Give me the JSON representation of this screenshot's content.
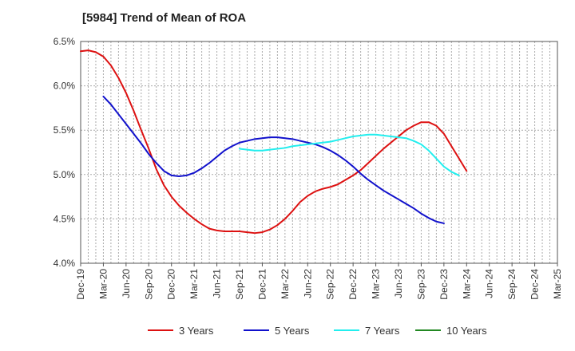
{
  "chart_data": {
    "type": "line",
    "title": "[5984]  Trend of Mean of ROA",
    "xlabel": "",
    "ylabel": "",
    "ylim": [
      4.0,
      6.5
    ],
    "grid": true,
    "legend_position": "bottom",
    "y_ticks": [
      "4.0%",
      "4.5%",
      "5.0%",
      "5.5%",
      "6.0%",
      "6.5%"
    ],
    "x_ticks": [
      "Dec-19",
      "Mar-20",
      "Jun-20",
      "Sep-20",
      "Dec-20",
      "Mar-21",
      "Jun-21",
      "Sep-21",
      "Dec-21",
      "Mar-22",
      "Jun-22",
      "Sep-22",
      "Dec-22",
      "Mar-23",
      "Jun-23",
      "Sep-23",
      "Dec-23",
      "Mar-24",
      "Jun-24",
      "Sep-24",
      "Dec-24",
      "Mar-25"
    ],
    "series": [
      {
        "name": "3 Years",
        "color": "#dd1111",
        "values": [
          6.39,
          6.4,
          6.38,
          6.33,
          6.23,
          6.09,
          5.92,
          5.72,
          5.5,
          5.29,
          5.06,
          4.88,
          4.75,
          4.65,
          4.57,
          4.5,
          4.44,
          4.39,
          4.37,
          4.36,
          4.36,
          4.36,
          4.35,
          4.34,
          4.35,
          4.38,
          4.43,
          4.5,
          4.59,
          4.69,
          4.76,
          4.81,
          4.84,
          4.86,
          4.89,
          4.94,
          4.99,
          5.05,
          5.13,
          5.21,
          5.29,
          5.36,
          5.43,
          5.5,
          5.55,
          5.59,
          5.59,
          5.55,
          5.46,
          5.32,
          5.18,
          5.04
        ]
      },
      {
        "name": "5 Years",
        "color": "#1111cc",
        "values": [
          null,
          null,
          null,
          5.88,
          5.79,
          5.68,
          5.57,
          5.46,
          5.35,
          5.23,
          5.13,
          5.04,
          4.99,
          4.98,
          4.99,
          5.02,
          5.07,
          5.13,
          5.2,
          5.27,
          5.32,
          5.36,
          5.38,
          5.4,
          5.41,
          5.42,
          5.42,
          5.41,
          5.4,
          5.38,
          5.36,
          5.34,
          5.31,
          5.27,
          5.22,
          5.16,
          5.09,
          5.01,
          4.94,
          4.88,
          4.82,
          4.77,
          4.72,
          4.67,
          4.62,
          4.56,
          4.51,
          4.47,
          4.45
        ]
      },
      {
        "name": "7 Years",
        "color": "#22eeee",
        "values": [
          null,
          null,
          null,
          null,
          null,
          null,
          null,
          null,
          null,
          null,
          null,
          null,
          null,
          null,
          null,
          null,
          null,
          null,
          null,
          null,
          null,
          5.29,
          5.28,
          5.27,
          5.27,
          5.28,
          5.29,
          5.3,
          5.32,
          5.33,
          5.34,
          5.35,
          5.36,
          5.37,
          5.39,
          5.41,
          5.43,
          5.44,
          5.45,
          5.45,
          5.44,
          5.43,
          5.42,
          5.41,
          5.38,
          5.34,
          5.27,
          5.18,
          5.09,
          5.03,
          4.99
        ]
      },
      {
        "name": "10 Years",
        "color": "#228822",
        "values": []
      }
    ]
  }
}
